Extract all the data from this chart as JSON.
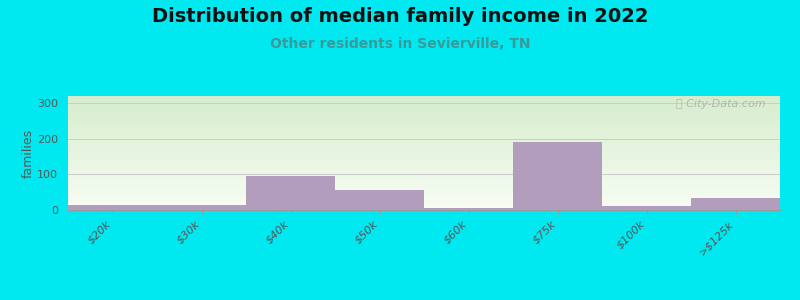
{
  "title": "Distribution of median family income in 2022",
  "subtitle": "Other residents in Sevierville, TN",
  "ylabel": "families",
  "categories": [
    "$20k",
    "$30k",
    "$40k",
    "$50k",
    "$60k",
    "$75k",
    "$100k",
    ">$125k"
  ],
  "values": [
    13,
    15,
    95,
    55,
    5,
    192,
    10,
    35
  ],
  "bar_color": "#b39dbd",
  "background_outer": "#00e8f0",
  "bg_top_color": "#d6edcc",
  "bg_bottom_color": "#f8fdf5",
  "grid_color": "#cccccc",
  "title_fontsize": 14,
  "subtitle_fontsize": 10,
  "ylabel_fontsize": 9,
  "tick_fontsize": 8,
  "yticks": [
    0,
    100,
    200,
    300
  ],
  "ylim": [
    0,
    320
  ],
  "watermark": "ⓘ City-Data.com"
}
